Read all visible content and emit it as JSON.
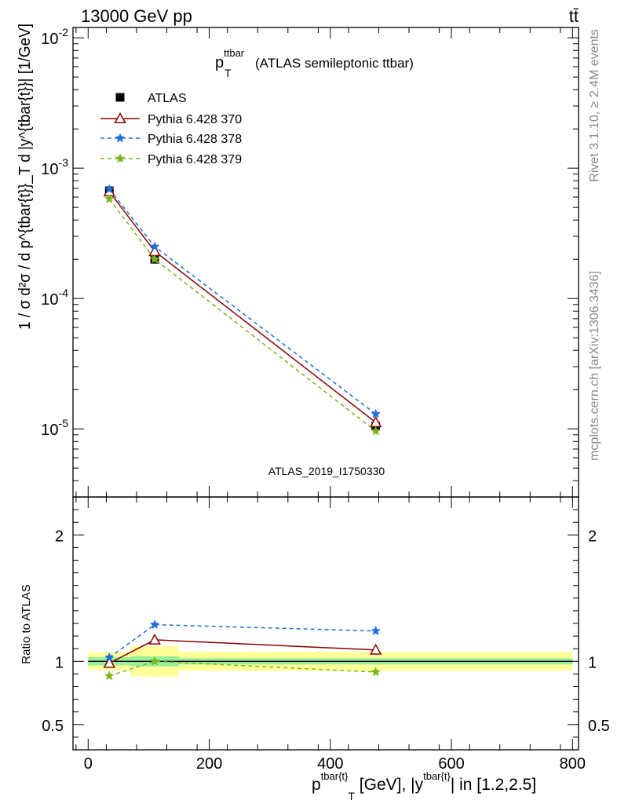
{
  "header": {
    "energy_label": "13000 GeV pp",
    "process_label": "tt̄"
  },
  "side_labels": {
    "rivet": "Rivet 3.1.10, ≥ 2.4M events",
    "mcplots": "mcplots.cern.ch [arXiv:1306.3436]"
  },
  "chart_data": {
    "type": "line",
    "title_main": "p",
    "title_sup": "ttbar",
    "title_sub": "T",
    "title_rest": "(ATLAS semileptonic ttbar)",
    "analysis_id": "ATLAS_2019_I1750330",
    "ylabel": "1 / σ d²σ / d p^{tbar{t}}_T d |y^{tbar{t}}| [1/GeV]",
    "ylabel_ratio": "Ratio to ATLAS",
    "xlabel_main": "p",
    "xlabel_sup1": "tbar{t}",
    "xlabel_sub": "T",
    "xlabel_mid": "[GeV], |y",
    "xlabel_sup2": "tbar{t}",
    "xlabel_end": "| in [1.2,2.5]",
    "xlim": [
      -25,
      810
    ],
    "ylim_main": [
      3e-06,
      0.012
    ],
    "ylog": true,
    "ylim_ratio": [
      0.3,
      2.3
    ],
    "x_ticks": [
      0,
      200,
      400,
      600,
      800
    ],
    "x_tick_labels": [
      "0",
      "200",
      "400",
      "600",
      "800"
    ],
    "y_ticks_main": [
      {
        "base": "10",
        "exp": "-5"
      },
      {
        "base": "10",
        "exp": "-4"
      },
      {
        "base": "10",
        "exp": "-3"
      },
      {
        "base": "10",
        "exp": "-2"
      }
    ],
    "y_ticks_ratio": [
      "0.5",
      "1",
      "2"
    ],
    "x": [
      35,
      110,
      475
    ],
    "bin_edges": [
      0,
      70,
      150,
      800
    ],
    "data": {
      "name": "ATLAS",
      "values": [
        0.00067,
        0.0002,
        1.05e-05
      ],
      "band_inner": [
        0.065,
        0.08,
        0.05
      ],
      "band_outer": [
        0.14,
        0.24,
        0.15
      ]
    },
    "series": [
      {
        "name": "Pythia 6.428 370",
        "color": "#8b0000",
        "marker": "triangle",
        "dash": "none",
        "values": [
          0.00066,
          0.00023,
          1.12e-05
        ],
        "ratio": [
          0.985,
          1.17,
          1.09
        ]
      },
      {
        "name": "Pythia 6.428 378",
        "color": "#1e6fd9",
        "marker": "star",
        "dash": "5,4",
        "values": [
          0.00069,
          0.00025,
          1.3e-05
        ],
        "ratio": [
          1.03,
          1.29,
          1.24
        ]
      },
      {
        "name": "Pythia 6.428 379",
        "color": "#7cb518",
        "marker": "star",
        "dash": "5,4",
        "values": [
          0.00058,
          0.0002,
          9.6e-06
        ],
        "ratio": [
          0.885,
          1.0,
          0.915
        ]
      }
    ],
    "legend": [
      "ATLAS",
      "Pythia 6.428 370",
      "Pythia 6.428 378",
      "Pythia 6.428 379"
    ],
    "legend_placement": "top-left"
  }
}
